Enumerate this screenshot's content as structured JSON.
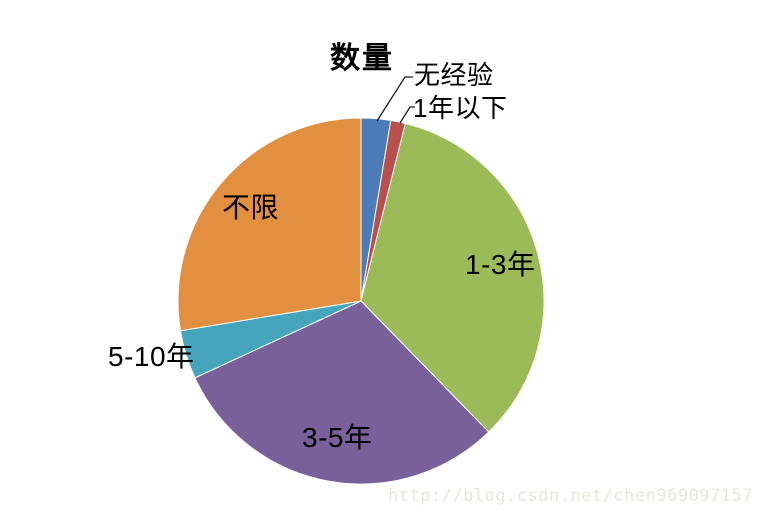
{
  "chart_data": {
    "type": "pie",
    "title": "数量",
    "legend_position": "none",
    "start_angle_deg": 0,
    "direction": "clockwise",
    "units": "percent_of_total",
    "grid": false,
    "slices": [
      {
        "label": "无经验",
        "value": 2.6,
        "color": "#4C7CB8"
      },
      {
        "label": "1年以下",
        "value": 1.3,
        "color": "#B9504D"
      },
      {
        "label": "1-3年",
        "value": 33.8,
        "color": "#9BBB59"
      },
      {
        "label": "3-5年",
        "value": 30.4,
        "color": "#7A609A"
      },
      {
        "label": "5-10年",
        "value": 4.3,
        "color": "#44A5BC"
      },
      {
        "label": "不限",
        "value": 27.6,
        "color": "#E29040"
      }
    ]
  },
  "watermark": "http://blog.csdn.net/chen969097157"
}
